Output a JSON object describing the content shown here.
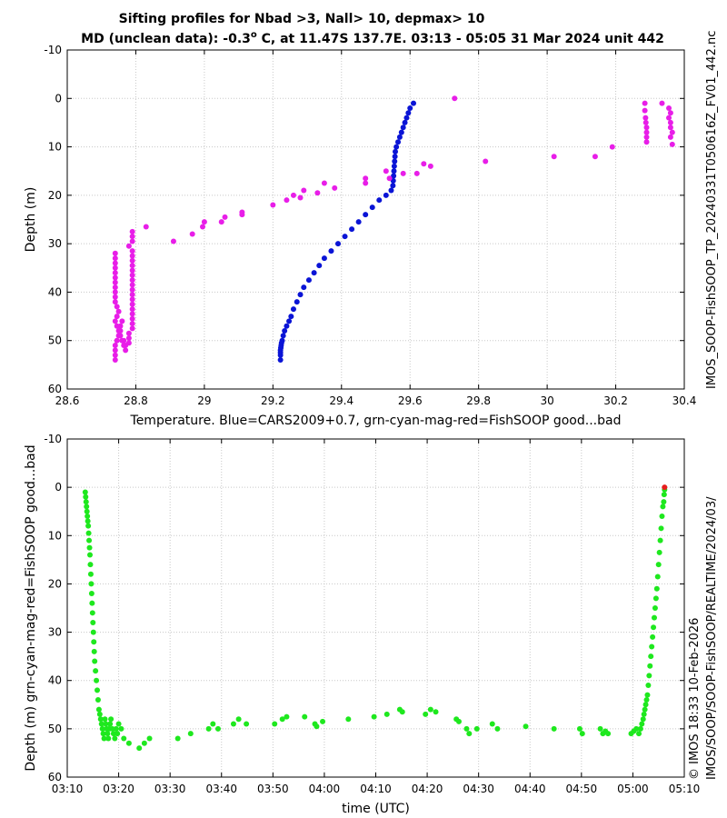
{
  "title": {
    "line1": "Sifting profiles for Nbad >3, Nall> 10, depmax> 10",
    "line2_pre": "MD (unclean data): -0.3",
    "line2_sup": "o",
    "line2_post": " C, at 11.47S 137.7E. 03:13 - 05:05 31 Mar 2024 unit 442"
  },
  "side_labels": {
    "right_top": "IMOS_SOOP-FishSOOP_TP_20240331T050616Z_FV01_442.nc",
    "right_bottom": "IMOS/SOOP/SOOP-FishSOOP/REALTIME/2024/03/",
    "right_date": "© IMOS 18:33 10-Feb-2026"
  },
  "colors": {
    "blue": "#0a14d6",
    "magenta": "#e81ee8",
    "green": "#1ee81e",
    "red": "#e81e1e"
  },
  "chart_data": [
    {
      "type": "scatter",
      "xlabel": "Temperature. Blue=CARS2009+0.7, grn-cyan-mag-red=FishSOOP good...bad",
      "ylabel": "Depth (m)",
      "xlim": [
        28.6,
        30.4
      ],
      "ylim": [
        -10,
        60
      ],
      "y_reversed": true,
      "grid": true,
      "xticks": [
        "28.6",
        "28.8",
        "29",
        "29.2",
        "29.4",
        "29.6",
        "29.8",
        "30",
        "30.2",
        "30.4"
      ],
      "yticks": [
        "-10",
        "0",
        "10",
        "20",
        "30",
        "40",
        "50",
        "60"
      ],
      "series": [
        {
          "color": "blue",
          "x": [
            29.61,
            29.6,
            29.595,
            29.59,
            29.585,
            29.58,
            29.575,
            29.57,
            29.565,
            29.56,
            29.557,
            29.556,
            29.555,
            29.554,
            29.553,
            29.552,
            29.551,
            29.55,
            29.545,
            29.53,
            29.51,
            29.49,
            29.47,
            29.45,
            29.43,
            29.41,
            29.39,
            29.37,
            29.35,
            29.335,
            29.32,
            29.305,
            29.29,
            29.28,
            29.27,
            29.26,
            29.253,
            29.247,
            29.24,
            29.234,
            29.23,
            29.227,
            29.225,
            29.224,
            29.223,
            29.222,
            29.222,
            29.222,
            29.222
          ],
          "y": [
            1,
            2,
            3,
            4,
            5,
            6,
            7,
            8,
            9,
            10,
            11,
            12,
            13,
            14,
            15,
            16,
            17,
            18,
            19,
            20,
            21,
            22.5,
            24,
            25.5,
            27,
            28.5,
            30,
            31.5,
            33,
            34.5,
            36,
            37.5,
            39,
            40.5,
            42,
            43.5,
            45,
            46,
            47,
            48,
            49,
            50,
            50.5,
            51,
            51.5,
            52,
            52.5,
            53,
            54
          ]
        },
        {
          "color": "magenta",
          "x": [
            29.73,
            29.82,
            30.02,
            30.14,
            30.19,
            30.285,
            30.285,
            30.287,
            30.288,
            30.29,
            30.29,
            30.29,
            30.29,
            30.335,
            30.355,
            30.36,
            30.355,
            30.36,
            30.36,
            30.365,
            30.36,
            30.365,
            29.66,
            29.64,
            29.62,
            29.58,
            29.54,
            29.53,
            29.47,
            29.47,
            29.38,
            29.35,
            29.33,
            29.29,
            29.28,
            29.26,
            29.24,
            29.2,
            29.11,
            29.11,
            29.06,
            29.05,
            29.0,
            28.995,
            28.965,
            28.91,
            28.83,
            28.79,
            28.79,
            28.79,
            28.78,
            28.79,
            28.79,
            28.79,
            28.79,
            28.79,
            28.79,
            28.79,
            28.79,
            28.79,
            28.79,
            28.79,
            28.79,
            28.79,
            28.79,
            28.79,
            28.79,
            28.79,
            28.78,
            28.78,
            28.78,
            28.77,
            28.765,
            28.76,
            28.755,
            28.755,
            28.75,
            28.745,
            28.74,
            28.74,
            28.74,
            28.74,
            28.74,
            28.74,
            28.74,
            28.74,
            28.74,
            28.74,
            28.74,
            28.74,
            28.74,
            28.74,
            28.74,
            28.745,
            28.75,
            28.745,
            28.74,
            28.745,
            28.75,
            28.755,
            28.76,
            28.765,
            28.77
          ],
          "y": [
            0,
            13,
            12,
            12,
            10,
            1,
            2.5,
            4,
            5,
            6,
            7,
            8,
            9,
            1,
            2,
            3,
            4,
            5,
            6,
            7,
            8,
            9.5,
            14,
            13.5,
            15.5,
            15.5,
            16.5,
            15,
            16.5,
            17.5,
            18.5,
            17.5,
            19.5,
            19,
            20.5,
            20,
            21,
            22,
            23.5,
            24,
            24.5,
            25.5,
            25.5,
            26.5,
            28,
            29.5,
            26.5,
            27.5,
            28.5,
            29.5,
            30.5,
            31.5,
            32.5,
            33.5,
            34.5,
            35.5,
            36.5,
            37.5,
            38.5,
            39.5,
            40.5,
            41.5,
            42.5,
            43.5,
            44.5,
            45.5,
            46.5,
            47.5,
            48.5,
            49.5,
            50.5,
            51,
            50,
            46,
            47,
            48,
            49,
            50,
            51,
            52,
            53,
            54,
            32,
            33,
            34,
            35,
            36,
            37,
            38,
            39,
            40,
            41,
            42,
            43,
            44,
            45,
            46,
            47,
            48,
            49,
            50,
            51,
            52
          ]
        }
      ]
    },
    {
      "type": "scatter",
      "xlabel": "time (UTC)",
      "ylabel": "Depth (m) grn-cyan-mag-red=FishSOOP good...bad",
      "xlim": [
        "03:10",
        "05:10"
      ],
      "ylim": [
        -10,
        60
      ],
      "y_reversed": true,
      "grid": true,
      "xticks": [
        "03:10",
        "03:20",
        "03:30",
        "03:40",
        "03:50",
        "04:00",
        "04:10",
        "04:20",
        "04:30",
        "04:40",
        "04:50",
        "05:00",
        "05:10"
      ],
      "yticks": [
        "-10",
        "0",
        "10",
        "20",
        "30",
        "40",
        "50",
        "60"
      ],
      "series": [
        {
          "color": "green",
          "x": [
            "03:13:30",
            "03:13:35",
            "03:13:40",
            "03:13:45",
            "03:13:50",
            "03:13:55",
            "03:14:00",
            "03:14:05",
            "03:14:10",
            "03:14:15",
            "03:14:20",
            "03:14:25",
            "03:14:30",
            "03:14:35",
            "03:14:40",
            "03:14:45",
            "03:14:50",
            "03:14:55",
            "03:15:00",
            "03:15:05",
            "03:15:10",
            "03:15:15",
            "03:15:20",
            "03:15:30",
            "03:15:40",
            "03:15:50",
            "03:16:00",
            "03:16:10",
            "03:16:20",
            "03:16:30",
            "03:16:40",
            "03:16:50",
            "03:17:00",
            "03:17:10",
            "03:17:20",
            "03:17:30",
            "03:17:40",
            "03:17:50",
            "03:18:00",
            "03:18:10",
            "03:18:20",
            "03:18:30",
            "03:18:45",
            "03:19:00",
            "03:19:15",
            "03:19:30",
            "03:19:45",
            "03:20:00",
            "03:20:30",
            "03:21:00",
            "03:22:00",
            "03:24:00",
            "03:25:00",
            "03:26:00",
            "03:31:30",
            "03:34:00",
            "03:37:30",
            "03:38:20",
            "03:39:20",
            "03:42:20",
            "03:43:20",
            "03:44:50",
            "03:50:20",
            "03:51:50",
            "03:52:40",
            "03:56:10",
            "03:58:10",
            "03:58:30",
            "03:59:40",
            "04:04:40",
            "04:09:40",
            "04:12:10",
            "04:14:40",
            "04:15:10",
            "04:19:40",
            "04:20:40",
            "04:21:40",
            "04:25:40",
            "04:26:10",
            "04:27:40",
            "04:28:10",
            "04:29:40",
            "04:32:40",
            "04:33:40",
            "04:39:10",
            "04:44:40",
            "04:49:40",
            "04:50:10",
            "04:53:40",
            "04:54:10",
            "04:54:40",
            "04:55:10",
            "04:59:40",
            "05:00:10",
            "05:00:40",
            "05:01:10",
            "05:01:30",
            "05:01:45",
            "05:02:00",
            "05:02:10",
            "05:02:20",
            "05:02:30",
            "05:02:40",
            "05:02:50",
            "05:03:00",
            "05:03:10",
            "05:03:20",
            "05:03:30",
            "05:03:40",
            "05:03:50",
            "05:04:00",
            "05:04:10",
            "05:04:20",
            "05:04:30",
            "05:04:40",
            "05:04:50",
            "05:05:00",
            "05:05:10",
            "05:05:20",
            "05:05:30",
            "05:05:40",
            "05:05:50",
            "05:06:00",
            "05:06:05",
            "05:06:10"
          ],
          "y": [
            1,
            2,
            3,
            4,
            5,
            6,
            7,
            8,
            9.5,
            11,
            12.5,
            14,
            16,
            18,
            20,
            22,
            24,
            26,
            28,
            30,
            32,
            34,
            36,
            38,
            40,
            42,
            44,
            46,
            47,
            48,
            49,
            50,
            51,
            52,
            48,
            49,
            50,
            51,
            52,
            50,
            49,
            48,
            50,
            51,
            52,
            50,
            51,
            49,
            50,
            52,
            53,
            54,
            53,
            52,
            52,
            51,
            50,
            49,
            50,
            49,
            48,
            49,
            49,
            48,
            47.5,
            47.5,
            49,
            49.5,
            48.5,
            48,
            47.5,
            47,
            46,
            46.5,
            47,
            46,
            46.5,
            48,
            48.5,
            50,
            51,
            50,
            49,
            50,
            49.5,
            50,
            50,
            51,
            50,
            51,
            50.5,
            51,
            51,
            50.5,
            50,
            51,
            50,
            49,
            48,
            47,
            46,
            45,
            44,
            43,
            41,
            39,
            37,
            35,
            33,
            31,
            29,
            27,
            25,
            23,
            21,
            18.5,
            16,
            13.5,
            11,
            8.5,
            6,
            4,
            3,
            1.5,
            0.5
          ]
        },
        {
          "color": "red",
          "x": [
            "05:06:10"
          ],
          "y": [
            0
          ]
        }
      ]
    }
  ]
}
